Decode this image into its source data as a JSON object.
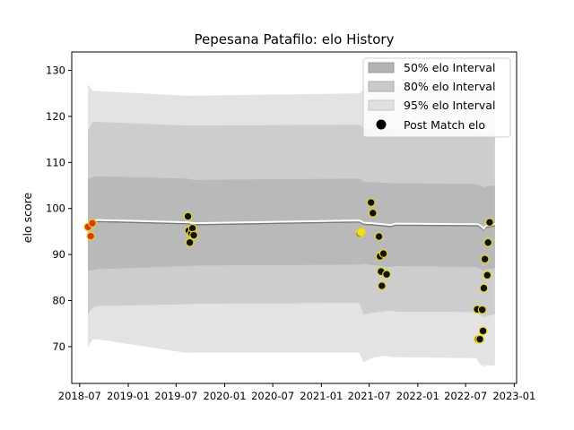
{
  "chart_data": {
    "type": "line",
    "title": "Pepesana Patafilo: elo History",
    "xlabel": "",
    "ylabel": "elo score",
    "xlim": [
      "2018-06-01",
      "2023-01-10"
    ],
    "ylim": [
      62,
      134
    ],
    "x_ticks": [
      "2018-07",
      "2019-01",
      "2019-07",
      "2020-01",
      "2020-07",
      "2021-01",
      "2021-07",
      "2022-01",
      "2022-07",
      "2023-01"
    ],
    "y_ticks": [
      70,
      80,
      90,
      100,
      110,
      120,
      130
    ],
    "grid": false,
    "legend_position": "top-right",
    "legend": [
      {
        "label": "50% elo Interval",
        "color": "#b3b3b3"
      },
      {
        "label": "80% elo Interval",
        "color": "#cacaca"
      },
      {
        "label": "95% elo Interval",
        "color": "#e0e0e0"
      },
      {
        "label": "Post Match elo",
        "color": "#000000"
      }
    ],
    "bands_x": [
      "2018-08-01",
      "2018-08-20",
      "2018-09-05",
      "2019-08-15",
      "2019-08-25",
      "2019-09-10",
      "2021-05-25",
      "2021-06-10",
      "2021-07-10",
      "2021-08-20",
      "2021-09-20",
      "2021-10-10",
      "2022-08-10",
      "2022-08-20",
      "2022-09-01",
      "2022-09-08",
      "2022-09-15",
      "2022-10-20"
    ],
    "mean": [
      97.0,
      97.2,
      97.5,
      97.0,
      96.9,
      96.8,
      97.4,
      96.9,
      96.8,
      96.6,
      96.4,
      96.7,
      96.6,
      96.5,
      96.0,
      95.6,
      96.2,
      96.6
    ],
    "band_50": {
      "lower": [
        86.5,
        86.6,
        86.8,
        87.5,
        87.6,
        87.6,
        87.8,
        88.0,
        87.7,
        87.5,
        87.3,
        87.5,
        87.3,
        87.0,
        86.6,
        86.4,
        86.8,
        87.0
      ],
      "upper": [
        106.5,
        106.8,
        107.0,
        106.5,
        106.3,
        106.2,
        106.5,
        105.8,
        105.7,
        105.6,
        105.5,
        105.5,
        105.3,
        105.0,
        104.8,
        104.5,
        104.8,
        105.0
      ]
    },
    "band_80": {
      "lower": [
        77.0,
        78.5,
        78.8,
        79.2,
        79.3,
        79.3,
        79.5,
        77.0,
        77.3,
        77.6,
        77.8,
        77.6,
        77.5,
        77.0,
        76.6,
        76.2,
        76.6,
        77.0
      ],
      "upper": [
        117.0,
        118.8,
        118.8,
        118.0,
        118.0,
        118.0,
        118.2,
        117.5,
        117.5,
        117.4,
        117.3,
        117.2,
        117.0,
        116.6,
        116.2,
        115.8,
        116.2,
        116.6
      ]
    },
    "band_95": {
      "lower": [
        70.0,
        71.5,
        71.6,
        68.6,
        68.7,
        68.7,
        68.7,
        66.6,
        67.5,
        68.0,
        67.8,
        67.7,
        67.5,
        66.5,
        65.9,
        65.6,
        66.0,
        65.8
      ],
      "upper": [
        127.0,
        125.5,
        125.5,
        124.5,
        124.5,
        124.5,
        125.0,
        126.0,
        126.0,
        126.2,
        126.5,
        126.5,
        126.3,
        126.4,
        127.0,
        127.3,
        127.0,
        127.6
      ]
    },
    "post_match": [
      {
        "x": "2018-08-02",
        "y": 96.0,
        "color": "#d93a14"
      },
      {
        "x": "2018-08-12",
        "y": 94.0,
        "color": "#d93a14"
      },
      {
        "x": "2018-08-18",
        "y": 96.8,
        "color": "#d93a14"
      },
      {
        "x": "2019-08-15",
        "y": 98.3,
        "color": "#111111"
      },
      {
        "x": "2019-08-18",
        "y": 95.2,
        "color": "#111111"
      },
      {
        "x": "2019-08-22",
        "y": 92.6,
        "color": "#111111"
      },
      {
        "x": "2019-08-28",
        "y": 94.6,
        "color": "#111111"
      },
      {
        "x": "2019-09-01",
        "y": 95.7,
        "color": "#111111"
      },
      {
        "x": "2019-09-06",
        "y": 94.2,
        "color": "#111111"
      },
      {
        "x": "2021-05-25",
        "y": 94.5,
        "color": "#5b8ec8"
      },
      {
        "x": "2021-06-01",
        "y": 94.9,
        "color": "#f7e017"
      },
      {
        "x": "2021-07-08",
        "y": 101.3,
        "color": "#111111"
      },
      {
        "x": "2021-07-15",
        "y": 99.0,
        "color": "#111111"
      },
      {
        "x": "2021-08-07",
        "y": 93.9,
        "color": "#111111"
      },
      {
        "x": "2021-08-11",
        "y": 89.6,
        "color": "#111111"
      },
      {
        "x": "2021-08-15",
        "y": 86.3,
        "color": "#111111"
      },
      {
        "x": "2021-08-18",
        "y": 83.2,
        "color": "#111111"
      },
      {
        "x": "2021-08-24",
        "y": 90.2,
        "color": "#111111"
      },
      {
        "x": "2021-09-05",
        "y": 85.7,
        "color": "#111111"
      },
      {
        "x": "2022-08-14",
        "y": 78.1,
        "color": "#111111"
      },
      {
        "x": "2022-08-18",
        "y": 71.6,
        "color": "#111111"
      },
      {
        "x": "2022-08-24",
        "y": 71.6,
        "color": "#111111"
      },
      {
        "x": "2022-09-02",
        "y": 78.0,
        "color": "#111111"
      },
      {
        "x": "2022-09-05",
        "y": 73.4,
        "color": "#111111"
      },
      {
        "x": "2022-09-08",
        "y": 82.7,
        "color": "#111111"
      },
      {
        "x": "2022-09-12",
        "y": 89.0,
        "color": "#111111"
      },
      {
        "x": "2022-09-21",
        "y": 85.5,
        "color": "#111111"
      },
      {
        "x": "2022-09-24",
        "y": 92.6,
        "color": "#111111"
      },
      {
        "x": "2022-09-30",
        "y": 97.0,
        "color": "#111111"
      }
    ]
  }
}
